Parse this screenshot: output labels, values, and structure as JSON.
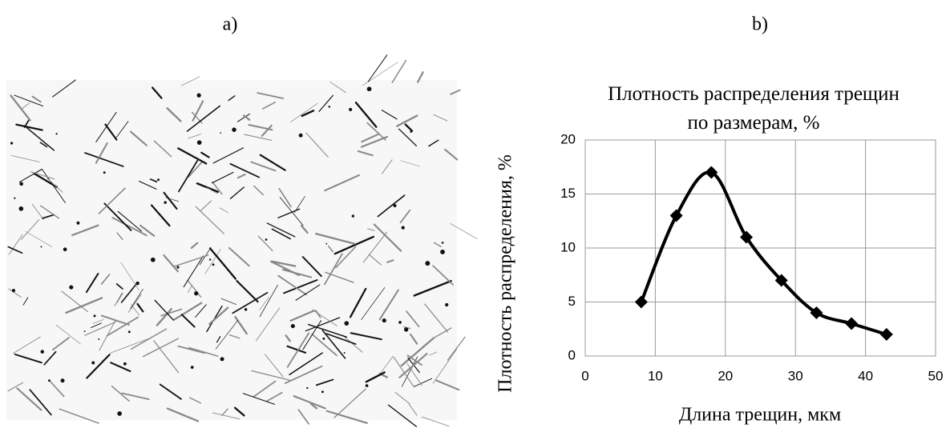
{
  "panels": {
    "a": "a)",
    "b": "b)"
  },
  "chart_data": {
    "type": "line",
    "smooth": true,
    "title": "Плотность распределения трещин\nпо размерам, %",
    "x_label": "Длина трещин, мкм",
    "y_label": "Плотность распределения, %",
    "x": [
      8,
      13,
      18,
      23,
      28,
      33,
      38,
      43
    ],
    "series": [
      {
        "color": "#000000",
        "marker": "diamond",
        "values": [
          5,
          13,
          17,
          11,
          7,
          4,
          3,
          2
        ]
      }
    ],
    "xlim": [
      0,
      50
    ],
    "xticks": [
      0,
      10,
      20,
      30,
      40,
      50
    ],
    "ylim": [
      0,
      20
    ],
    "yticks": [
      0,
      5,
      10,
      15,
      20
    ],
    "grid": true
  }
}
